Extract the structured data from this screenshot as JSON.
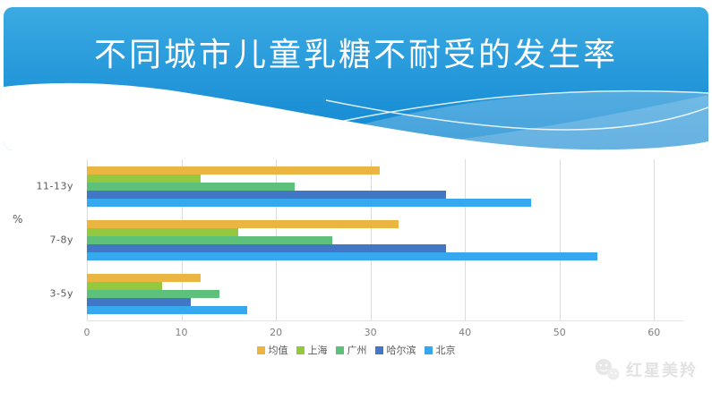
{
  "slide": {
    "title": "不同城市儿童乳糖不耐受的发生率",
    "watermark": "红星美羚"
  },
  "icons": {
    "watermark": "wechat-chat-bubbles"
  },
  "colors": {
    "header_top": "#3BAAE2",
    "header_bottom": "#1287D1",
    "grid": "#DCDCDC",
    "axis_text": "#7F7F7F",
    "category_text": "#595959",
    "watermark_text": "#E2E2E2"
  },
  "chart_data": {
    "type": "bar",
    "orientation": "horizontal",
    "title": "不同城市儿童乳糖不耐受的发生率",
    "xlabel": "",
    "ylabel": "%",
    "categories": [
      "11-13y",
      "7-8y",
      "3-5y"
    ],
    "series": [
      {
        "name": "均值",
        "color": "#EBB541",
        "values": [
          31,
          33,
          12
        ]
      },
      {
        "name": "上海",
        "color": "#94C83E",
        "values": [
          12,
          16,
          8
        ]
      },
      {
        "name": "广州",
        "color": "#5EC17B",
        "values": [
          22,
          26,
          14
        ]
      },
      {
        "name": "哈尔滨",
        "color": "#4277C6",
        "values": [
          38,
          38,
          11
        ]
      },
      {
        "name": "北京",
        "color": "#35A8F0",
        "values": [
          47,
          54,
          17
        ]
      }
    ],
    "x_ticks": [
      0,
      10,
      20,
      30,
      40,
      50,
      60
    ],
    "xlim": [
      0,
      63.1
    ],
    "grid": true,
    "legend_position": "bottom"
  }
}
